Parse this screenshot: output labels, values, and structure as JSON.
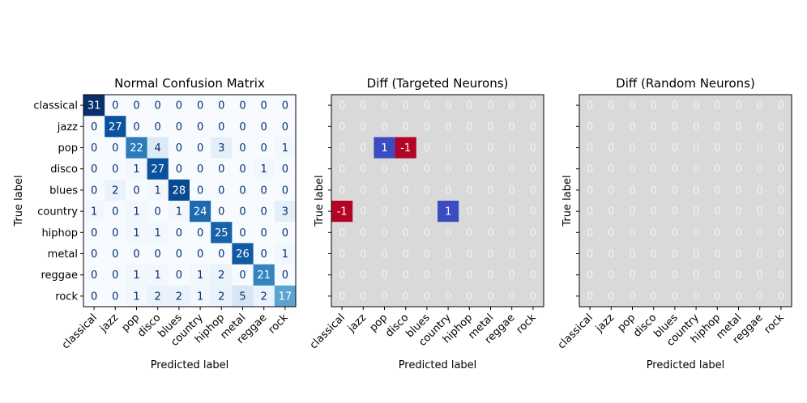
{
  "chart_data": [
    {
      "type": "heatmap",
      "title": "Normal Confusion Matrix",
      "xlabel": "Predicted label",
      "ylabel": "True label",
      "categories": [
        "classical",
        "jazz",
        "pop",
        "disco",
        "blues",
        "country",
        "hiphop",
        "metal",
        "reggae",
        "rock"
      ],
      "colormap": "Blues",
      "vmin": 0,
      "vmax": 31,
      "values": [
        [
          31,
          0,
          0,
          0,
          0,
          0,
          0,
          0,
          0,
          0
        ],
        [
          0,
          27,
          0,
          0,
          0,
          0,
          0,
          0,
          0,
          0
        ],
        [
          0,
          0,
          22,
          4,
          0,
          0,
          3,
          0,
          0,
          1
        ],
        [
          0,
          0,
          1,
          27,
          0,
          0,
          0,
          0,
          1,
          0
        ],
        [
          0,
          2,
          0,
          1,
          28,
          0,
          0,
          0,
          0,
          0
        ],
        [
          1,
          0,
          1,
          0,
          1,
          24,
          0,
          0,
          0,
          3
        ],
        [
          0,
          0,
          1,
          1,
          0,
          0,
          25,
          0,
          0,
          0
        ],
        [
          0,
          0,
          0,
          0,
          0,
          0,
          0,
          26,
          0,
          1
        ],
        [
          0,
          0,
          1,
          1,
          0,
          1,
          2,
          0,
          21,
          0
        ],
        [
          0,
          0,
          1,
          2,
          2,
          1,
          2,
          5,
          2,
          17
        ]
      ]
    },
    {
      "type": "heatmap",
      "title": "Diff (Targeted Neurons)",
      "xlabel": "Predicted label",
      "ylabel": "True label",
      "categories": [
        "classical",
        "jazz",
        "pop",
        "disco",
        "blues",
        "country",
        "hiphop",
        "metal",
        "reggae",
        "rock"
      ],
      "colormap": "diverging",
      "values": [
        [
          0,
          0,
          0,
          0,
          0,
          0,
          0,
          0,
          0,
          0
        ],
        [
          0,
          0,
          0,
          0,
          0,
          0,
          0,
          0,
          0,
          0
        ],
        [
          0,
          0,
          1,
          -1,
          0,
          0,
          0,
          0,
          0,
          0
        ],
        [
          0,
          0,
          0,
          0,
          0,
          0,
          0,
          0,
          0,
          0
        ],
        [
          0,
          0,
          0,
          0,
          0,
          0,
          0,
          0,
          0,
          0
        ],
        [
          -1,
          0,
          0,
          0,
          0,
          1,
          0,
          0,
          0,
          0
        ],
        [
          0,
          0,
          0,
          0,
          0,
          0,
          0,
          0,
          0,
          0
        ],
        [
          0,
          0,
          0,
          0,
          0,
          0,
          0,
          0,
          0,
          0
        ],
        [
          0,
          0,
          0,
          0,
          0,
          0,
          0,
          0,
          0,
          0
        ],
        [
          0,
          0,
          0,
          0,
          0,
          0,
          0,
          0,
          0,
          0
        ]
      ]
    },
    {
      "type": "heatmap",
      "title": "Diff (Random Neurons)",
      "xlabel": "Predicted label",
      "ylabel": "True label",
      "categories": [
        "classical",
        "jazz",
        "pop",
        "disco",
        "blues",
        "country",
        "hiphop",
        "metal",
        "reggae",
        "rock"
      ],
      "colormap": "diverging",
      "values": [
        [
          0,
          0,
          0,
          0,
          0,
          0,
          0,
          0,
          0,
          0
        ],
        [
          0,
          0,
          0,
          0,
          0,
          0,
          0,
          0,
          0,
          0
        ],
        [
          0,
          0,
          0,
          0,
          0,
          0,
          0,
          0,
          0,
          0
        ],
        [
          0,
          0,
          0,
          0,
          0,
          0,
          0,
          0,
          0,
          0
        ],
        [
          0,
          0,
          0,
          0,
          0,
          0,
          0,
          0,
          0,
          0
        ],
        [
          0,
          0,
          0,
          0,
          0,
          0,
          0,
          0,
          0,
          0
        ],
        [
          0,
          0,
          0,
          0,
          0,
          0,
          0,
          0,
          0,
          0
        ],
        [
          0,
          0,
          0,
          0,
          0,
          0,
          0,
          0,
          0,
          0
        ],
        [
          0,
          0,
          0,
          0,
          0,
          0,
          0,
          0,
          0,
          0
        ],
        [
          0,
          0,
          0,
          0,
          0,
          0,
          0,
          0,
          0,
          0
        ]
      ]
    }
  ],
  "colors": {
    "diff_zero": "#d9d9d9",
    "diff_positive": "#3b4cc0",
    "diff_negative": "#b40426",
    "zero_text": "#f2f2f2",
    "light_text": "#ffffff",
    "dark_text": "#08306b"
  }
}
